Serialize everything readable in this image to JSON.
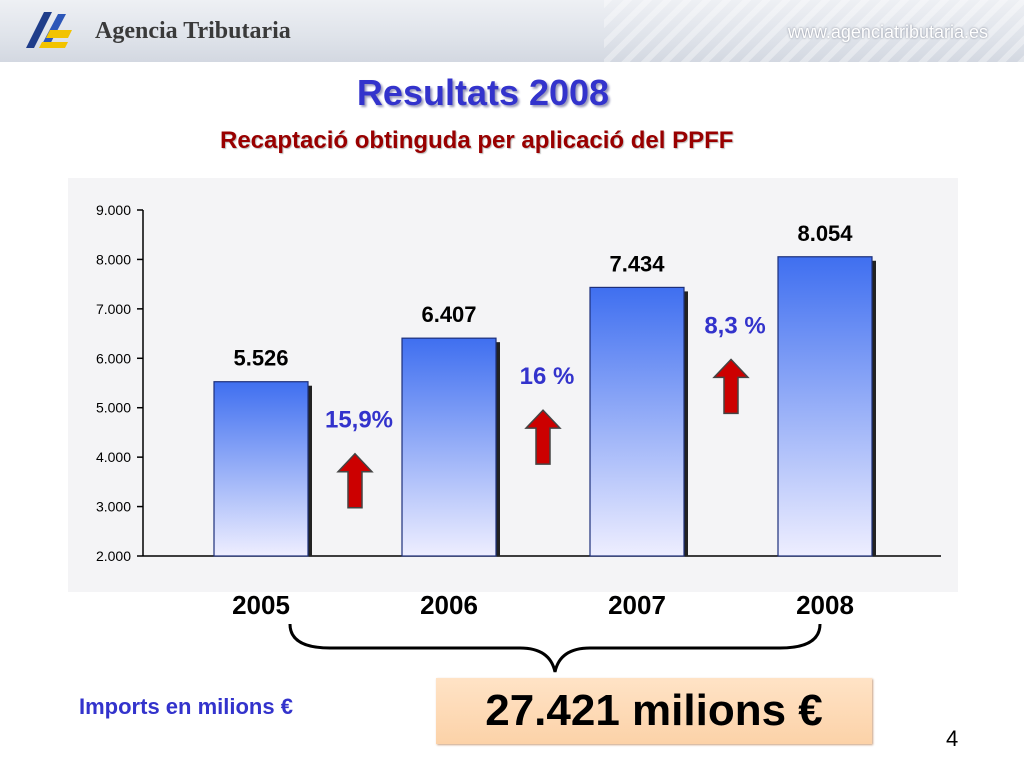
{
  "header": {
    "agency_name": "Agencia Tributaria",
    "url": "www.agenciatributaria.es",
    "logo_icon": "agency-logo-icon"
  },
  "slide": {
    "title": "Resultats 2008",
    "subtitle": "Recaptació obtinguda per aplicació del PPFF",
    "units_note": "Imports en milions €",
    "total": "27.421 milions €",
    "page_number": "4"
  },
  "colors": {
    "title": "#3333cc",
    "subtitle": "#990000",
    "bar_top": "#3f6ff0",
    "bar_bottom": "#eeeeff",
    "arrow": "#cc0000",
    "growth_text": "#3333cc",
    "total_bg": "#fdd9b5"
  },
  "chart_data": {
    "type": "bar",
    "categories": [
      "2005",
      "2006",
      "2007",
      "2008"
    ],
    "values": [
      5526,
      6407,
      7434,
      8054
    ],
    "value_labels": [
      "5.526",
      "6.407",
      "7.434",
      "8.054"
    ],
    "ylim": [
      2000,
      9000
    ],
    "y_ticks": [
      2000,
      3000,
      4000,
      5000,
      6000,
      7000,
      8000,
      9000
    ],
    "y_tick_labels": [
      "2.000",
      "3.000",
      "4.000",
      "5.000",
      "6.000",
      "7.000",
      "8.000",
      "9.000"
    ],
    "growth_annotations": [
      {
        "label": "15,9%",
        "icon": "up-arrow-icon"
      },
      {
        "label": "16 %",
        "icon": "up-arrow-icon"
      },
      {
        "label": "8,3 %",
        "icon": "up-arrow-icon"
      }
    ],
    "grid": false,
    "legend": "none"
  }
}
